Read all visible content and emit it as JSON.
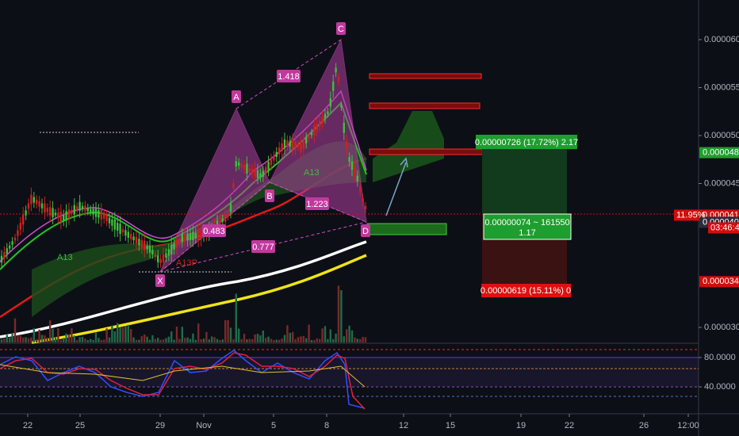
{
  "price_axis": {
    "ticks": [
      {
        "value": 6e-05,
        "label": "0.00006000"
      },
      {
        "value": 5.5e-05,
        "label": "0.00005500"
      },
      {
        "value": 5e-05,
        "label": "0.00005000"
      },
      {
        "value": 4.5e-05,
        "label": "0.00004500"
      },
      {
        "value": 3e-05,
        "label": "0.00003000"
      }
    ],
    "tags": [
      {
        "value": 4.822e-05,
        "label": "0.00004822",
        "color": "#1e9e2e"
      },
      {
        "value": 4.17e-05,
        "label": "0.00004170",
        "color": "#d10d0d"
      },
      {
        "value": 4.096e-05,
        "label": "0.00004096",
        "color": "#2a2e39"
      },
      {
        "value": 3.477e-05,
        "label": "0.00003477",
        "color": "#d10d0d"
      }
    ],
    "countdown": "03:46:42",
    "change": "11.95%"
  },
  "time_axis": {
    "labels": [
      "22",
      "25",
      "29",
      "Nov",
      "5",
      "8",
      "12",
      "15",
      "19",
      "22",
      "26",
      "12:00"
    ]
  },
  "pattern": {
    "points": [
      "X",
      "A",
      "B",
      "C",
      "D"
    ],
    "ratios": [
      "1.418",
      "0.483",
      "0.777",
      "1.223"
    ],
    "notes": [
      "A13",
      "A13P"
    ]
  },
  "position": {
    "target": "0.00000726 (17.72%) 2.17",
    "entry": "0.00000074 ~ 161550",
    "ratio": "1.17",
    "stop": "0.00000619 (15.11%) 0"
  },
  "oscillator": {
    "ticks": [
      {
        "value": 80,
        "label": "80.0000"
      },
      {
        "value": 40,
        "label": "40.0000"
      }
    ]
  }
}
